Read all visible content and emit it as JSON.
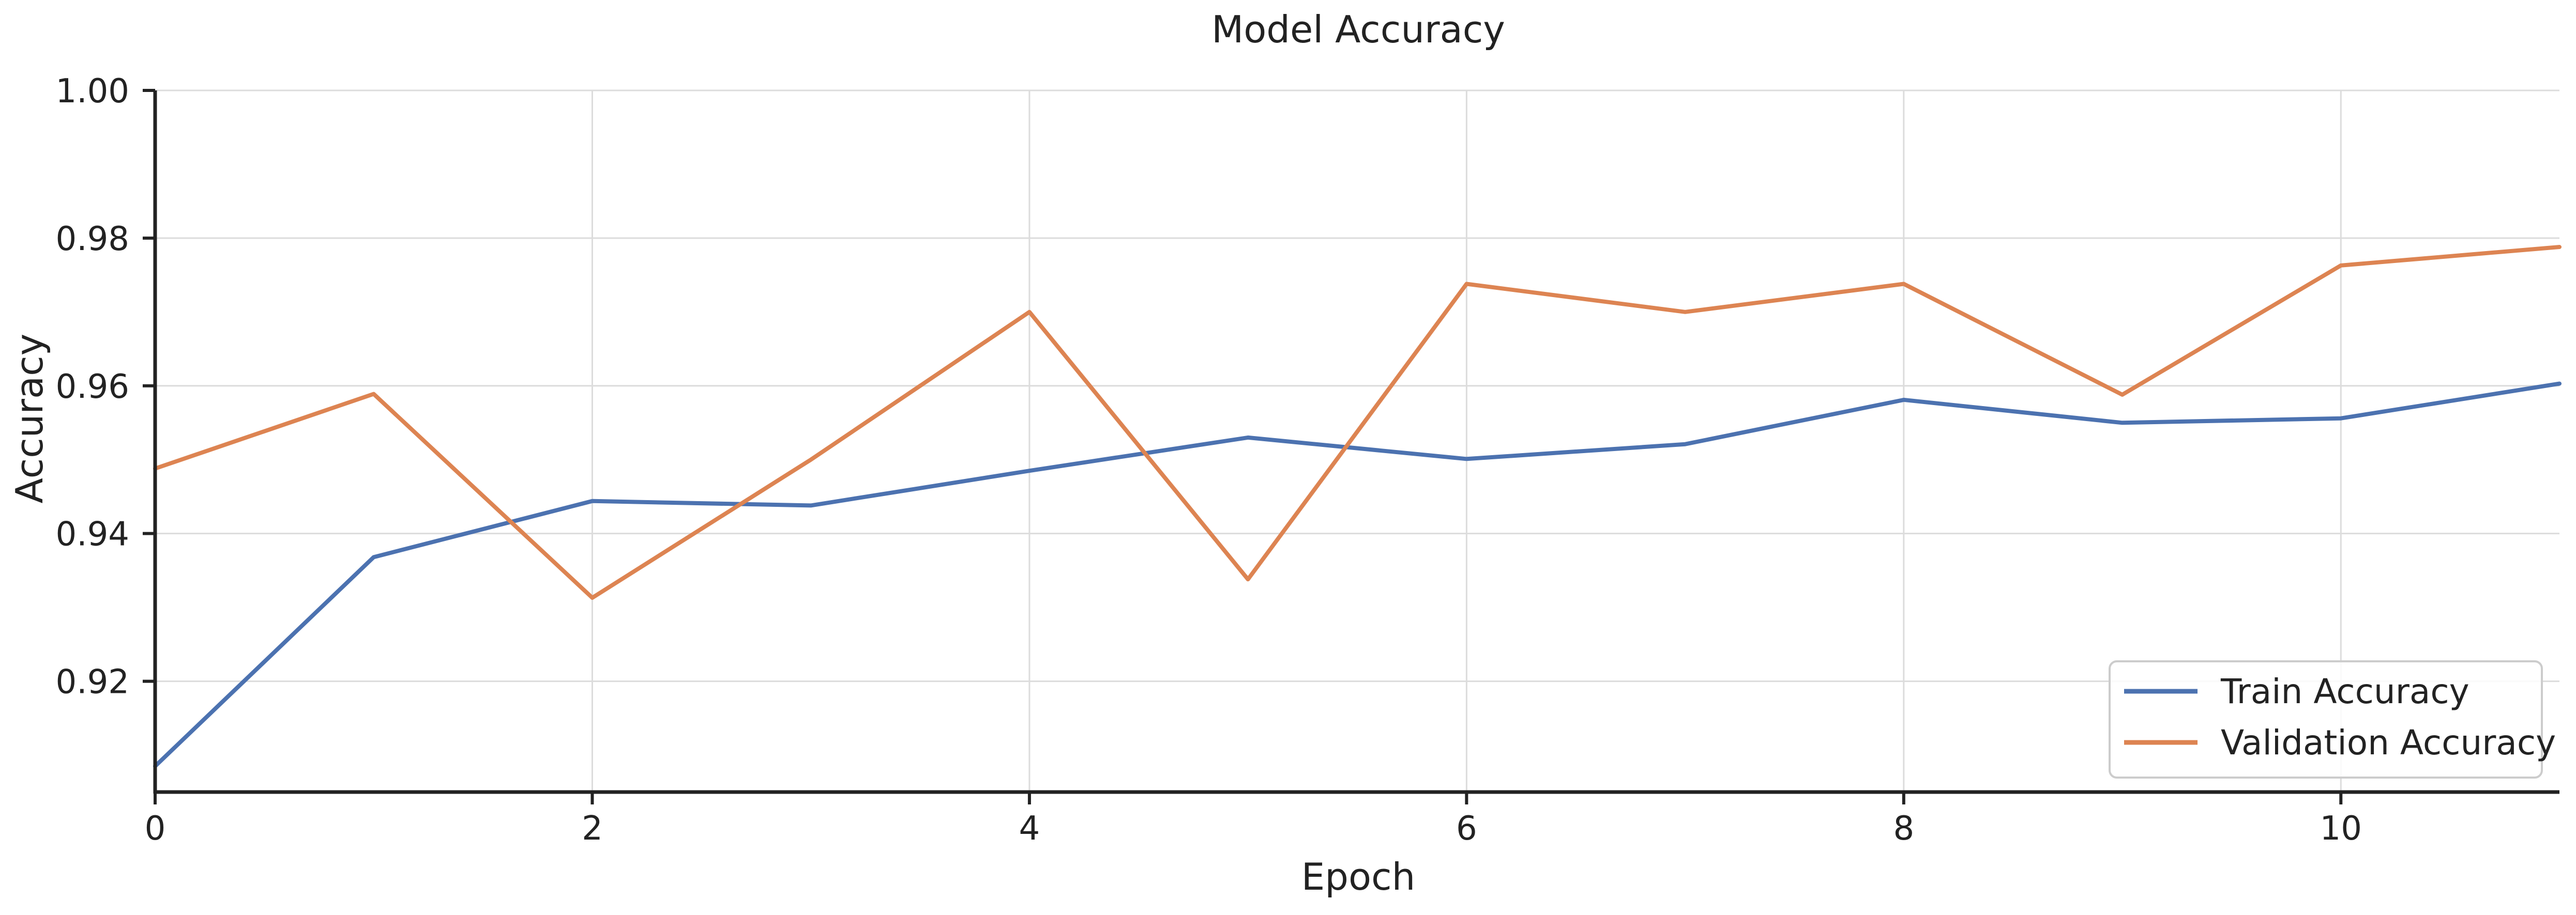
{
  "chart_data": {
    "type": "line",
    "title": "Model Accuracy",
    "xlabel": "Epoch",
    "ylabel": "Accuracy",
    "x": [
      0,
      1,
      2,
      3,
      4,
      5,
      6,
      7,
      8,
      9,
      10,
      11
    ],
    "xlim": [
      0,
      11
    ],
    "ylim": [
      0.905,
      1.0
    ],
    "xticks": [
      0,
      2,
      4,
      6,
      8,
      10
    ],
    "yticks": [
      0.92,
      0.94,
      0.96,
      0.98,
      1.0
    ],
    "xtick_labels": [
      "0",
      "2",
      "4",
      "6",
      "8",
      "10"
    ],
    "ytick_labels": [
      "0.92",
      "0.94",
      "0.96",
      "0.98",
      "1.00"
    ],
    "grid": true,
    "legend": "bottom-right",
    "series": [
      {
        "name": "Train Accuracy",
        "color": "#4c72b0",
        "values": [
          0.9085,
          0.9368,
          0.9444,
          0.9438,
          0.9485,
          0.953,
          0.9501,
          0.9521,
          0.9581,
          0.955,
          0.9556,
          0.9603
        ]
      },
      {
        "name": "Validation Accuracy",
        "color": "#dd8452",
        "values": [
          0.9488,
          0.9589,
          0.9313,
          0.95,
          0.97,
          0.9338,
          0.9738,
          0.97,
          0.9738,
          0.9588,
          0.9763,
          0.9788
        ]
      }
    ]
  }
}
